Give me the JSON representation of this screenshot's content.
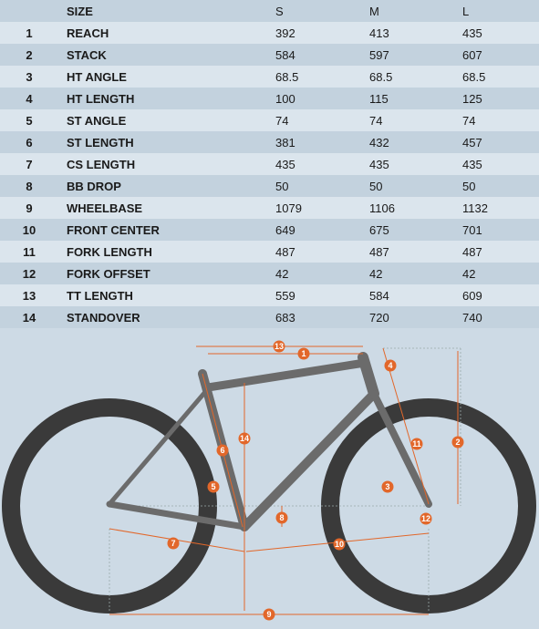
{
  "table": {
    "header": [
      "SIZE",
      "S",
      "M",
      "L"
    ],
    "rows": [
      [
        1,
        "REACH",
        392,
        413,
        435
      ],
      [
        2,
        "STACK",
        584,
        597,
        607
      ],
      [
        3,
        "HT ANGLE",
        68.5,
        68.5,
        68.5
      ],
      [
        4,
        "HT LENGTH",
        100,
        115,
        125
      ],
      [
        5,
        "ST ANGLE",
        74,
        74,
        74
      ],
      [
        6,
        "ST LENGTH",
        381,
        432,
        457
      ],
      [
        7,
        "CS LENGTH",
        435,
        435,
        435
      ],
      [
        8,
        "BB DROP",
        50,
        50,
        50
      ],
      [
        9,
        "WHEELBASE",
        1079,
        1106,
        1132
      ],
      [
        10,
        "FRONT CENTER",
        649,
        675,
        701
      ],
      [
        11,
        "FORK LENGTH",
        487,
        487,
        487
      ],
      [
        12,
        "FORK OFFSET",
        42,
        42,
        42
      ],
      [
        13,
        "TT LENGTH",
        559,
        584,
        609
      ],
      [
        14,
        "STANDOVER",
        683,
        720,
        740
      ]
    ]
  }
}
